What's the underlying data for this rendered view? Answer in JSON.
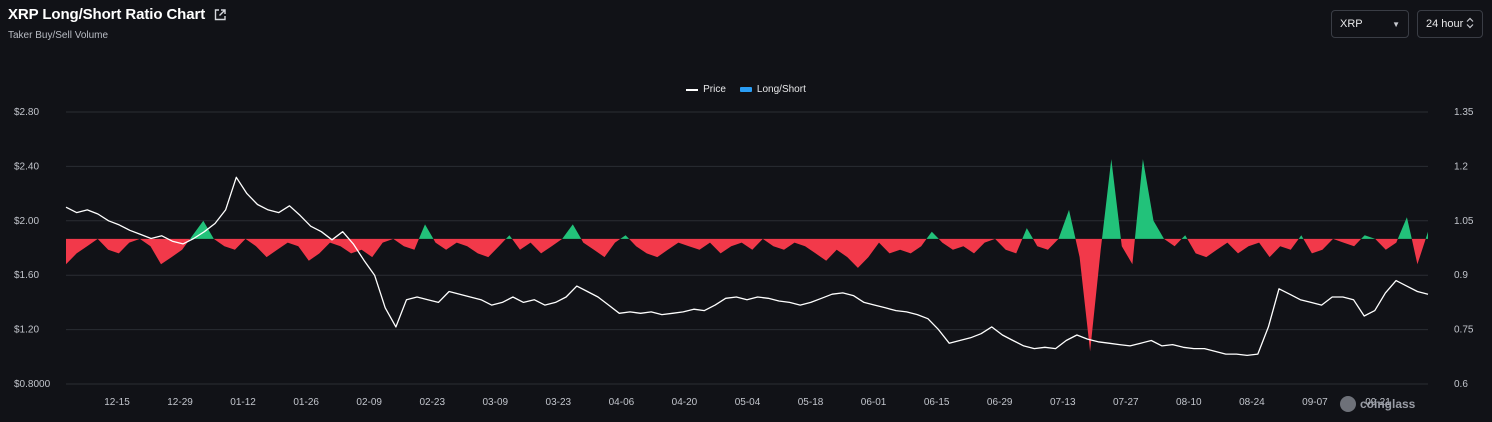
{
  "header": {
    "title": "XRP Long/Short Ratio Chart",
    "subtitle": "Taker Buy/Sell Volume",
    "external_link_icon": "external-link-icon"
  },
  "controls": {
    "coin": {
      "value": "XRP",
      "icon": "chevron-down-icon"
    },
    "interval": {
      "value": "24 hour",
      "icon": "up-down-chevron-icon"
    }
  },
  "legend": {
    "price_label": "Price",
    "ratio_label": "Long/Short"
  },
  "watermark": {
    "text": "coinglass",
    "icon": "coinglass-logo-icon"
  },
  "colors": {
    "background": "#111217",
    "price_line": "#ffffff",
    "long_green": "#22c27a",
    "short_red": "#f2394a",
    "legend_ratio": "#2a9df4",
    "grid": "#2a2d33"
  },
  "chart_data": {
    "type": "line",
    "x_tick_labels": [
      "12-15",
      "12-29",
      "01-12",
      "01-26",
      "02-09",
      "02-23",
      "03-09",
      "03-23",
      "04-06",
      "04-20",
      "05-04",
      "05-18",
      "06-01",
      "06-15",
      "06-29",
      "07-13",
      "07-27",
      "08-10",
      "08-24",
      "09-07",
      "09-21"
    ],
    "left_axis": {
      "label": "",
      "ticks": [
        "$2.80",
        "$2.40",
        "$2.00",
        "$1.60",
        "$1.20",
        "$0.8000"
      ],
      "range": [
        0.8,
        2.8
      ]
    },
    "right_axis": {
      "label": "",
      "ticks": [
        "1.35",
        "1.2",
        "1.05",
        "0.9",
        "0.75",
        "0.6"
      ],
      "range": [
        0.6,
        1.35
      ],
      "baseline": 1.0
    },
    "series": [
      {
        "name": "Price",
        "kind": "line",
        "axis": "left",
        "values": [
          2.1,
          2.06,
          2.08,
          2.05,
          2.0,
          1.97,
          1.93,
          1.9,
          1.87,
          1.89,
          1.85,
          1.83,
          1.87,
          1.92,
          1.98,
          2.08,
          2.32,
          2.2,
          2.12,
          2.08,
          2.06,
          2.11,
          2.04,
          1.96,
          1.92,
          1.86,
          1.92,
          1.83,
          1.71,
          1.6,
          1.36,
          1.22,
          1.42,
          1.44,
          1.42,
          1.4,
          1.48,
          1.46,
          1.44,
          1.42,
          1.38,
          1.4,
          1.44,
          1.4,
          1.42,
          1.38,
          1.4,
          1.44,
          1.52,
          1.48,
          1.44,
          1.38,
          1.32,
          1.33,
          1.32,
          1.33,
          1.31,
          1.32,
          1.33,
          1.35,
          1.34,
          1.38,
          1.43,
          1.44,
          1.42,
          1.44,
          1.43,
          1.41,
          1.4,
          1.38,
          1.4,
          1.43,
          1.46,
          1.47,
          1.45,
          1.4,
          1.38,
          1.36,
          1.34,
          1.33,
          1.31,
          1.28,
          1.2,
          1.1,
          1.12,
          1.14,
          1.17,
          1.22,
          1.16,
          1.12,
          1.08,
          1.06,
          1.07,
          1.06,
          1.12,
          1.16,
          1.13,
          1.11,
          1.1,
          1.09,
          1.08,
          1.1,
          1.12,
          1.08,
          1.09,
          1.07,
          1.06,
          1.06,
          1.04,
          1.02,
          1.02,
          1.01,
          1.02,
          1.22,
          1.5,
          1.46,
          1.42,
          1.4,
          1.38,
          1.44,
          1.44,
          1.42,
          1.3,
          1.34,
          1.47,
          1.56,
          1.52,
          1.48,
          1.46
        ]
      },
      {
        "name": "Long/Short",
        "kind": "area",
        "axis": "right",
        "values": [
          0.93,
          0.96,
          0.98,
          1.0,
          0.97,
          0.96,
          0.99,
          1.0,
          0.98,
          0.93,
          0.95,
          0.97,
          1.01,
          1.05,
          1.0,
          0.98,
          0.97,
          1.0,
          0.98,
          0.95,
          0.97,
          0.99,
          0.98,
          0.94,
          0.96,
          0.99,
          0.98,
          0.96,
          0.97,
          0.95,
          0.99,
          1.0,
          0.98,
          0.97,
          1.04,
          0.99,
          0.97,
          0.99,
          0.98,
          0.96,
          0.95,
          0.98,
          1.01,
          0.97,
          0.99,
          0.96,
          0.98,
          1.0,
          1.04,
          0.99,
          0.97,
          0.95,
          0.99,
          1.01,
          0.98,
          0.96,
          0.95,
          0.97,
          0.99,
          0.98,
          0.97,
          0.99,
          0.96,
          0.98,
          0.99,
          0.97,
          1.0,
          0.98,
          0.97,
          0.99,
          0.98,
          0.96,
          0.94,
          0.97,
          0.95,
          0.92,
          0.95,
          0.99,
          0.96,
          0.97,
          0.96,
          0.98,
          1.02,
          0.99,
          0.97,
          0.98,
          0.96,
          0.99,
          1.0,
          0.97,
          0.96,
          1.03,
          0.98,
          0.97,
          1.0,
          1.08,
          0.95,
          0.69,
          0.97,
          1.22,
          0.98,
          0.93,
          1.22,
          1.05,
          1.0,
          0.98,
          1.01,
          0.96,
          0.95,
          0.97,
          0.99,
          0.96,
          0.98,
          0.99,
          0.95,
          0.98,
          0.97,
          1.01,
          0.96,
          0.97,
          1.0,
          0.99,
          0.98,
          1.01,
          1.0,
          0.97,
          0.99,
          1.06,
          0.93,
          1.02
        ]
      }
    ],
    "grid": true,
    "legend_position": "top-center"
  }
}
